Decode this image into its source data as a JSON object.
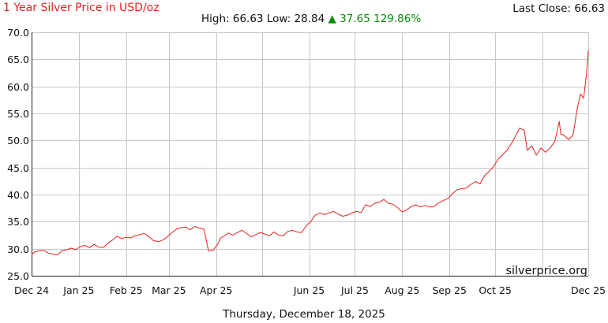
{
  "header": {
    "title": "1 Year Silver Price in USD/oz",
    "last_close_label": "Last Close:",
    "last_close_value": "66.63",
    "high_label": "High:",
    "high_value": "66.63",
    "low_label": "Low:",
    "low_value": "28.84",
    "change_arrow": "▲",
    "change_value": "37.65",
    "change_percent": "129.86%"
  },
  "watermark": "silverprice.org",
  "footer_date": "Thursday, December 18, 2025",
  "colors": {
    "line": "#e8201c",
    "title": "#e8201c",
    "change": "#0a8a0a",
    "grid": "#c8c8c8"
  },
  "chart_data": {
    "type": "line",
    "ylim": [
      25,
      70
    ],
    "yticks": [
      25,
      30,
      35,
      40,
      45,
      50,
      55,
      60,
      65,
      70
    ],
    "ytick_labels": [
      "25.0",
      "30.0",
      "35.0",
      "40.0",
      "45.0",
      "50.0",
      "55.0",
      "60.0",
      "65.0",
      "70.0"
    ],
    "xlim": [
      "2024-12-01",
      "2025-12-01"
    ],
    "xticks": [
      "2024-12-01",
      "2025-01-01",
      "2025-02-01",
      "2025-03-01",
      "2025-04-01",
      "2025-05-01",
      "2025-06-01",
      "2025-07-01",
      "2025-08-01",
      "2025-09-01",
      "2025-10-01",
      "2025-11-01",
      "2025-12-01"
    ],
    "xtick_labels": [
      "Dec 24",
      "Jan 25",
      "Feb 25",
      "Mar 25",
      "Apr 25",
      "Jun 25",
      "Jul 25",
      "Aug 25",
      "Sep 25",
      "Oct 25",
      "Dec 25"
    ],
    "xtick_label_dates": [
      "2024-12-01",
      "2025-01-01",
      "2025-02-01",
      "2025-03-01",
      "2025-04-01",
      "2025-06-01",
      "2025-07-01",
      "2025-08-01",
      "2025-09-01",
      "2025-10-01",
      "2025-12-01"
    ],
    "grid": true,
    "series": [
      {
        "x": [
          "2024-12-01",
          "2024-12-03",
          "2024-12-06",
          "2024-12-09",
          "2024-12-12",
          "2024-12-15",
          "2024-12-18",
          "2024-12-21",
          "2024-12-24",
          "2024-12-27",
          "2024-12-30",
          "2025-01-02",
          "2025-01-05",
          "2025-01-08",
          "2025-01-11",
          "2025-01-14",
          "2025-01-17",
          "2025-01-20",
          "2025-01-23",
          "2025-01-26",
          "2025-01-29",
          "2025-02-01",
          "2025-02-04",
          "2025-02-07",
          "2025-02-10",
          "2025-02-13",
          "2025-02-16",
          "2025-02-19",
          "2025-02-22",
          "2025-02-25",
          "2025-02-28",
          "2025-03-03",
          "2025-03-06",
          "2025-03-09",
          "2025-03-12",
          "2025-03-15",
          "2025-03-18",
          "2025-03-21",
          "2025-03-24",
          "2025-03-27",
          "2025-03-30",
          "2025-04-02",
          "2025-04-04",
          "2025-04-06",
          "2025-04-09",
          "2025-04-12",
          "2025-04-15",
          "2025-04-18",
          "2025-04-21",
          "2025-04-24",
          "2025-04-27",
          "2025-04-30",
          "2025-05-03",
          "2025-05-06",
          "2025-05-09",
          "2025-05-12",
          "2025-05-15",
          "2025-05-18",
          "2025-05-21",
          "2025-05-24",
          "2025-05-27",
          "2025-05-30",
          "2025-06-02",
          "2025-06-05",
          "2025-06-08",
          "2025-06-11",
          "2025-06-14",
          "2025-06-17",
          "2025-06-20",
          "2025-06-23",
          "2025-06-26",
          "2025-06-29",
          "2025-07-02",
          "2025-07-05",
          "2025-07-08",
          "2025-07-11",
          "2025-07-14",
          "2025-07-17",
          "2025-07-20",
          "2025-07-23",
          "2025-07-26",
          "2025-07-29",
          "2025-08-01",
          "2025-08-04",
          "2025-08-07",
          "2025-08-10",
          "2025-08-13",
          "2025-08-16",
          "2025-08-19",
          "2025-08-22",
          "2025-08-25",
          "2025-08-28",
          "2025-08-31",
          "2025-09-03",
          "2025-09-06",
          "2025-09-09",
          "2025-09-12",
          "2025-09-15",
          "2025-09-18",
          "2025-09-21",
          "2025-09-24",
          "2025-09-27",
          "2025-09-30",
          "2025-10-03",
          "2025-10-06",
          "2025-10-09",
          "2025-10-12",
          "2025-10-15",
          "2025-10-17",
          "2025-10-20",
          "2025-10-22",
          "2025-10-25",
          "2025-10-28",
          "2025-10-31",
          "2025-11-03",
          "2025-11-06",
          "2025-11-09",
          "2025-11-12",
          "2025-11-13",
          "2025-11-15",
          "2025-11-18",
          "2025-11-21",
          "2025-11-24",
          "2025-11-26",
          "2025-11-28",
          "2025-11-30",
          "2025-12-01"
        ],
        "values": [
          28.9,
          29.4,
          29.6,
          29.7,
          29.2,
          29.0,
          28.84,
          29.6,
          29.8,
          30.1,
          29.8,
          30.4,
          30.6,
          30.2,
          30.8,
          30.3,
          30.2,
          31.0,
          31.6,
          32.3,
          31.9,
          32.1,
          32.0,
          32.4,
          32.6,
          32.8,
          32.2,
          31.5,
          31.3,
          31.6,
          32.2,
          33.0,
          33.6,
          33.9,
          34.0,
          33.5,
          34.1,
          33.8,
          33.6,
          29.6,
          29.7,
          30.8,
          32.0,
          32.3,
          32.9,
          32.5,
          33.0,
          33.4,
          32.8,
          32.2,
          32.6,
          33.0,
          32.7,
          32.4,
          33.1,
          32.5,
          32.4,
          33.2,
          33.4,
          33.1,
          33.0,
          34.2,
          35.0,
          36.2,
          36.6,
          36.3,
          36.6,
          36.9,
          36.4,
          36.0,
          36.2,
          36.6,
          36.9,
          36.7,
          38.1,
          37.8,
          38.4,
          38.6,
          39.1,
          38.4,
          38.2,
          37.6,
          36.8,
          37.2,
          37.8,
          38.1,
          37.7,
          38.0,
          37.7,
          37.8,
          38.5,
          38.9,
          39.3,
          40.2,
          40.9,
          41.1,
          41.2,
          41.9,
          42.4,
          42.0,
          43.5,
          44.3,
          45.2,
          46.6,
          47.4,
          48.3,
          49.6,
          51.2,
          52.3,
          51.9,
          48.2,
          49.0,
          47.3,
          48.6,
          47.8,
          48.6,
          49.8,
          53.5,
          51.2,
          51.0,
          50.2,
          51.0,
          56.3,
          58.6,
          57.8,
          62.8,
          66.63
        ]
      }
    ]
  }
}
